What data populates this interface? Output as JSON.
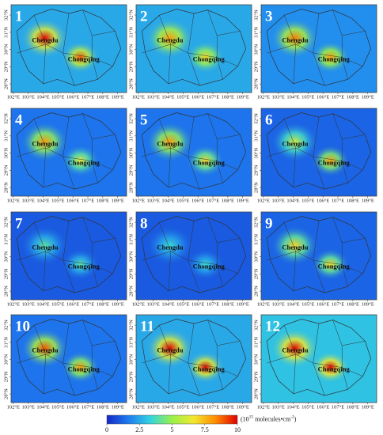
{
  "map_axes": {
    "xlim": [
      101.85,
      109.6
    ],
    "ylim": [
      27.5,
      32.6
    ],
    "xticks": [
      {
        "value": 102,
        "label": "102°E"
      },
      {
        "value": 103,
        "label": "103°E"
      },
      {
        "value": 104,
        "label": "104°E"
      },
      {
        "value": 105,
        "label": "105°E"
      },
      {
        "value": 106,
        "label": "106°E"
      },
      {
        "value": 107,
        "label": "107°E"
      },
      {
        "value": 108,
        "label": "108°E"
      },
      {
        "value": 109,
        "label": "109°E"
      }
    ],
    "yticks": [
      {
        "value": 28,
        "label": "28°N"
      },
      {
        "value": 29,
        "label": "29°N"
      },
      {
        "value": 30,
        "label": "30°N"
      },
      {
        "value": 31,
        "label": "31°N"
      },
      {
        "value": 32,
        "label": "32°N"
      }
    ]
  },
  "cities": [
    {
      "name": "Chengdu",
      "lon": 104.1,
      "lat": 30.65
    },
    {
      "name": "Chongqing",
      "lon": 106.5,
      "lat": 29.55
    }
  ],
  "panels": [
    {
      "label": "1",
      "background": 2.5,
      "chengdu": 10,
      "chongqing": 9
    },
    {
      "label": "2",
      "background": 2.5,
      "chengdu": 8,
      "chongqing": 7
    },
    {
      "label": "3",
      "background": 2,
      "chengdu": 8.5,
      "chongqing": 8
    },
    {
      "label": "4",
      "background": 1.5,
      "chengdu": 8,
      "chongqing": 6.5
    },
    {
      "label": "5",
      "background": 1.5,
      "chengdu": 8,
      "chongqing": 7
    },
    {
      "label": "6",
      "background": 1.2,
      "chengdu": 6,
      "chongqing": 8
    },
    {
      "label": "7",
      "background": 1,
      "chengdu": 4,
      "chongqing": 4
    },
    {
      "label": "8",
      "background": 1,
      "chengdu": 3.5,
      "chongqing": 3.5
    },
    {
      "label": "9",
      "background": 1.2,
      "chengdu": 7,
      "chongqing": 7
    },
    {
      "label": "10",
      "background": 1.5,
      "chengdu": 9,
      "chongqing": 8
    },
    {
      "label": "11",
      "background": 2.5,
      "chengdu": 10,
      "chongqing": 10
    },
    {
      "label": "12",
      "background": 3,
      "chengdu": 10,
      "chongqing": 10
    }
  ],
  "colorbar": {
    "lim": [
      0,
      10
    ],
    "ticks": [
      0,
      2.5,
      5,
      7.5,
      10
    ],
    "colors": [
      "#1428c8",
      "#1e7cf0",
      "#33d4e0",
      "#9af04a",
      "#f2e830",
      "#ff8a00",
      "#e00000"
    ],
    "unit_base": "(10",
    "unit_exp": "15",
    "unit_mid": " molecules•cm",
    "unit_exp2": "-2",
    "unit_end": ")"
  }
}
